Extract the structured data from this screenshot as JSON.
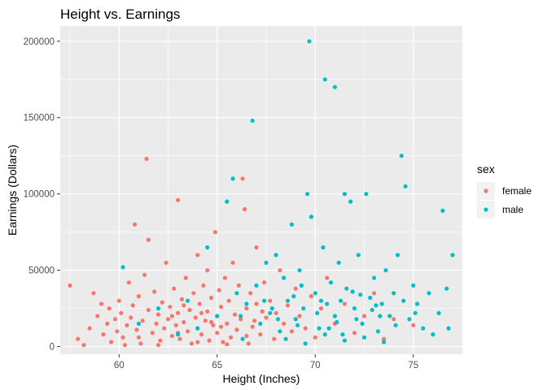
{
  "chart_data": {
    "type": "scatter",
    "title": "Height vs. Earnings",
    "xlabel": "Height (Inches)",
    "ylabel": "Earnings (Dollars)",
    "xlim": [
      57,
      77.5
    ],
    "ylim": [
      -5000,
      210000
    ],
    "x_ticks": [
      60,
      65,
      70,
      75
    ],
    "y_ticks": [
      0,
      50000,
      100000,
      150000,
      200000
    ],
    "grid": true,
    "background": "#EBEBEB",
    "legend": {
      "title": "sex",
      "position": "right"
    },
    "series": [
      {
        "name": "female",
        "color": "#F8766D",
        "points": [
          [
            57.5,
            40000
          ],
          [
            57.9,
            5000
          ],
          [
            58.2,
            1000
          ],
          [
            58.5,
            12000
          ],
          [
            58.7,
            35000
          ],
          [
            58.9,
            20000
          ],
          [
            59.1,
            28000
          ],
          [
            59.2,
            8000
          ],
          [
            59.4,
            15000
          ],
          [
            59.5,
            25000
          ],
          [
            59.6,
            3000
          ],
          [
            59.8,
            18000
          ],
          [
            59.9,
            10000
          ],
          [
            60.0,
            30000
          ],
          [
            60.1,
            22000
          ],
          [
            60.2,
            6000
          ],
          [
            60.4,
            14000
          ],
          [
            60.5,
            42000
          ],
          [
            60.6,
            19000
          ],
          [
            60.7,
            27000
          ],
          [
            60.8,
            80000
          ],
          [
            60.9,
            11000
          ],
          [
            61.0,
            33000
          ],
          [
            61.1,
            2000
          ],
          [
            61.2,
            17000
          ],
          [
            61.3,
            47000
          ],
          [
            61.4,
            123000
          ],
          [
            61.5,
            70000
          ],
          [
            61.5,
            24000
          ],
          [
            61.7,
            9000
          ],
          [
            61.8,
            36000
          ],
          [
            61.9,
            15000
          ],
          [
            62.0,
            21000
          ],
          [
            62.1,
            4000
          ],
          [
            62.2,
            29000
          ],
          [
            62.3,
            12000
          ],
          [
            62.4,
            55000
          ],
          [
            62.5,
            18000
          ],
          [
            62.6,
            26000
          ],
          [
            62.7,
            7000
          ],
          [
            62.8,
            38000
          ],
          [
            62.9,
            14000
          ],
          [
            63.0,
            96000
          ],
          [
            63.0,
            22000
          ],
          [
            63.1,
            5000
          ],
          [
            63.2,
            31000
          ],
          [
            63.3,
            16000
          ],
          [
            63.4,
            45000
          ],
          [
            63.5,
            10000
          ],
          [
            63.6,
            24000
          ],
          [
            63.7,
            2000
          ],
          [
            63.8,
            35000
          ],
          [
            63.9,
            19000
          ],
          [
            64.0,
            60000
          ],
          [
            64.0,
            12000
          ],
          [
            64.1,
            28000
          ],
          [
            64.2,
            8000
          ],
          [
            64.3,
            40000
          ],
          [
            64.4,
            17000
          ],
          [
            64.5,
            50000
          ],
          [
            64.5,
            23000
          ],
          [
            64.6,
            4000
          ],
          [
            64.7,
            32000
          ],
          [
            64.8,
            14000
          ],
          [
            64.9,
            75000
          ],
          [
            65.0,
            20000
          ],
          [
            65.0,
            9000
          ],
          [
            65.1,
            37000
          ],
          [
            65.2,
            26000
          ],
          [
            65.3,
            3000
          ],
          [
            65.4,
            45000
          ],
          [
            65.5,
            15000
          ],
          [
            65.6,
            30000
          ],
          [
            65.7,
            6000
          ],
          [
            65.8,
            55000
          ],
          [
            65.9,
            21000
          ],
          [
            66.0,
            11000
          ],
          [
            66.1,
            40000
          ],
          [
            66.2,
            18000
          ],
          [
            66.3,
            110000
          ],
          [
            66.4,
            90000
          ],
          [
            66.5,
            25000
          ],
          [
            66.6,
            2000
          ],
          [
            66.7,
            35000
          ],
          [
            66.8,
            13000
          ],
          [
            67.0,
            65000
          ],
          [
            67.0,
            28000
          ],
          [
            67.2,
            8000
          ],
          [
            67.4,
            42000
          ],
          [
            67.5,
            19000
          ],
          [
            67.7,
            30000
          ],
          [
            67.9,
            5000
          ],
          [
            68.0,
            22000
          ],
          [
            68.2,
            50000
          ],
          [
            68.4,
            15000
          ],
          [
            68.6,
            27000
          ],
          [
            68.8,
            10000
          ],
          [
            69.0,
            38000
          ],
          [
            69.2,
            20000
          ],
          [
            69.5,
            12000
          ],
          [
            69.8,
            33000
          ],
          [
            70.0,
            6000
          ],
          [
            70.3,
            25000
          ],
          [
            70.6,
            45000
          ],
          [
            71.0,
            15000
          ],
          [
            71.5,
            28000
          ],
          [
            72.0,
            9000
          ],
          [
            72.5,
            20000
          ],
          [
            73.0,
            35000
          ],
          [
            73.5,
            5000
          ],
          [
            74.0,
            18000
          ],
          [
            75.0,
            14000
          ],
          [
            61.0,
            6000
          ],
          [
            62.0,
            1000
          ],
          [
            63.0,
            9000
          ],
          [
            64.0,
            3000
          ],
          [
            65.5,
            1500
          ],
          [
            66.5,
            7000
          ],
          [
            60.3,
            1000
          ],
          [
            62.7,
            20000
          ],
          [
            63.3,
            27000
          ],
          [
            64.2,
            22000
          ],
          [
            64.7,
            16000
          ],
          [
            65.2,
            13000
          ],
          [
            66.9,
            17000
          ],
          [
            67.3,
            23000
          ]
        ]
      },
      {
        "name": "male",
        "color": "#00BFC4",
        "points": [
          [
            60.2,
            52000
          ],
          [
            61.0,
            15000
          ],
          [
            62.0,
            25000
          ],
          [
            63.0,
            8000
          ],
          [
            63.5,
            30000
          ],
          [
            64.0,
            12000
          ],
          [
            64.5,
            65000
          ],
          [
            65.0,
            20000
          ],
          [
            65.5,
            95000
          ],
          [
            65.8,
            110000
          ],
          [
            66.0,
            35000
          ],
          [
            66.3,
            5000
          ],
          [
            66.5,
            28000
          ],
          [
            66.8,
            148000
          ],
          [
            67.0,
            40000
          ],
          [
            67.2,
            15000
          ],
          [
            67.5,
            55000
          ],
          [
            67.7,
            22000
          ],
          [
            68.0,
            60000
          ],
          [
            68.2,
            10000
          ],
          [
            68.4,
            45000
          ],
          [
            68.6,
            30000
          ],
          [
            68.8,
            80000
          ],
          [
            69.0,
            18000
          ],
          [
            69.2,
            50000
          ],
          [
            69.4,
            25000
          ],
          [
            69.6,
            100000
          ],
          [
            69.7,
            200000
          ],
          [
            69.8,
            85000
          ],
          [
            70.0,
            35000
          ],
          [
            70.2,
            12000
          ],
          [
            70.4,
            65000
          ],
          [
            70.5,
            175000
          ],
          [
            70.6,
            28000
          ],
          [
            70.8,
            42000
          ],
          [
            71.0,
            170000
          ],
          [
            71.0,
            20000
          ],
          [
            71.2,
            55000
          ],
          [
            71.4,
            8000
          ],
          [
            71.5,
            100000
          ],
          [
            71.6,
            38000
          ],
          [
            71.8,
            95000
          ],
          [
            72.0,
            25000
          ],
          [
            72.2,
            60000
          ],
          [
            72.4,
            15000
          ],
          [
            72.6,
            100000
          ],
          [
            72.8,
            32000
          ],
          [
            73.0,
            45000
          ],
          [
            73.2,
            10000
          ],
          [
            73.4,
            28000
          ],
          [
            73.6,
            50000
          ],
          [
            73.8,
            20000
          ],
          [
            74.0,
            35000
          ],
          [
            74.2,
            60000
          ],
          [
            74.4,
            125000
          ],
          [
            74.6,
            105000
          ],
          [
            74.8,
            18000
          ],
          [
            75.0,
            40000
          ],
          [
            75.2,
            28000
          ],
          [
            75.5,
            12000
          ],
          [
            75.8,
            35000
          ],
          [
            76.0,
            8000
          ],
          [
            76.3,
            22000
          ],
          [
            76.5,
            89000
          ],
          [
            76.7,
            38000
          ],
          [
            77.0,
            60000
          ],
          [
            68.5,
            5000
          ],
          [
            69.5,
            2000
          ],
          [
            70.5,
            8000
          ],
          [
            71.5,
            4000
          ],
          [
            72.5,
            6000
          ],
          [
            73.5,
            3000
          ],
          [
            67.8,
            25000
          ],
          [
            68.9,
            33000
          ],
          [
            70.1,
            22000
          ],
          [
            71.3,
            30000
          ],
          [
            72.1,
            18000
          ],
          [
            73.1,
            27000
          ],
          [
            74.1,
            14000
          ],
          [
            69.3,
            40000
          ],
          [
            70.7,
            12000
          ],
          [
            71.9,
            36000
          ],
          [
            72.9,
            24000
          ],
          [
            74.5,
            30000
          ],
          [
            66.2,
            20000
          ],
          [
            67.4,
            30000
          ],
          [
            68.1,
            18000
          ],
          [
            69.1,
            14000
          ],
          [
            70.3,
            30000
          ],
          [
            71.1,
            16000
          ],
          [
            72.3,
            34000
          ],
          [
            73.3,
            20000
          ],
          [
            75.1,
            22000
          ],
          [
            76.8,
            12000
          ]
        ]
      }
    ]
  }
}
